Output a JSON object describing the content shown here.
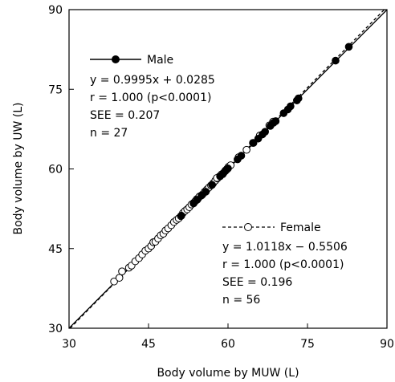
{
  "chart_data": {
    "type": "scatter",
    "xlabel": "Body volume by MUW (L)",
    "ylabel": "Body volume by UW (L)",
    "xlim": [
      30,
      90
    ],
    "ylim": [
      30,
      90
    ],
    "x_ticks": [
      "30",
      "45",
      "60",
      "75",
      "90"
    ],
    "y_ticks": [
      "30",
      "45",
      "60",
      "75",
      "90"
    ],
    "grid": false,
    "legend_position": "inside",
    "series": [
      {
        "name": "Male",
        "marker": "filled-circle",
        "line_style": "solid",
        "fit": {
          "slope": 0.9995,
          "intercept": 0.0285
        },
        "stats": [
          "y = 0.9995x + 0.0285",
          "r = 1.000 (p<0.0001)",
          "SEE = 0.207",
          "n = 27"
        ],
        "x": [
          51.2,
          53.5,
          55.0,
          55.8,
          57.0,
          58.5,
          59.0,
          59.5,
          60.0,
          61.8,
          62.5,
          64.8,
          66.5,
          67.0,
          68.0,
          68.6,
          69.0,
          70.5,
          71.3,
          71.8,
          73.0,
          73.3,
          80.3,
          82.8,
          54.2,
          59.8,
          65.7
        ],
        "y": [
          51.2,
          53.5,
          55.0,
          55.7,
          57.0,
          58.6,
          59.0,
          59.6,
          60.1,
          61.8,
          62.5,
          64.9,
          66.5,
          67.0,
          68.1,
          68.7,
          69.0,
          70.5,
          71.2,
          71.8,
          72.9,
          73.3,
          80.4,
          83.0,
          54.2,
          59.9,
          65.7
        ]
      },
      {
        "name": "Female",
        "marker": "open-circle",
        "line_style": "dashed",
        "fit": {
          "slope": 1.0118,
          "intercept": -0.5506
        },
        "stats": [
          "y = 1.0118x − 0.5506",
          "r = 1.000 (p<0.0001)",
          "SEE = 0.196",
          "n = 56"
        ],
        "x": [
          38.5,
          39.5,
          40.0,
          41.3,
          41.8,
          42.5,
          43.2,
          43.8,
          44.4,
          45.0,
          45.5,
          45.9,
          46.3,
          46.8,
          47.3,
          47.8,
          48.2,
          48.7,
          49.3,
          49.8,
          50.3,
          50.7,
          51.1,
          51.5,
          51.9,
          52.3,
          52.7,
          53.1,
          53.5,
          53.8,
          54.1,
          54.4,
          54.8,
          55.2,
          55.6,
          56.0,
          56.4,
          56.8,
          57.2,
          57.6,
          58.0,
          58.4,
          58.8,
          59.2,
          59.5,
          59.8,
          60.1,
          60.5,
          62.0,
          63.5,
          64.7,
          66.0,
          67.8,
          68.5,
          54.6,
          57.9
        ],
        "y": [
          38.8,
          39.5,
          40.7,
          41.4,
          41.8,
          42.6,
          43.2,
          43.9,
          44.6,
          45.0,
          45.5,
          46.2,
          46.3,
          46.9,
          47.5,
          47.8,
          48.4,
          48.8,
          49.4,
          50.0,
          50.4,
          50.7,
          51.1,
          51.7,
          52.1,
          52.4,
          52.8,
          53.3,
          53.6,
          53.9,
          54.3,
          54.5,
          54.9,
          55.2,
          55.7,
          56.1,
          56.5,
          56.9,
          57.3,
          57.8,
          58.2,
          58.6,
          59.0,
          59.3,
          59.7,
          60.0,
          60.4,
          60.7,
          62.2,
          63.6,
          64.9,
          66.3,
          68.2,
          68.9,
          54.8,
          58.3
        ]
      }
    ]
  }
}
